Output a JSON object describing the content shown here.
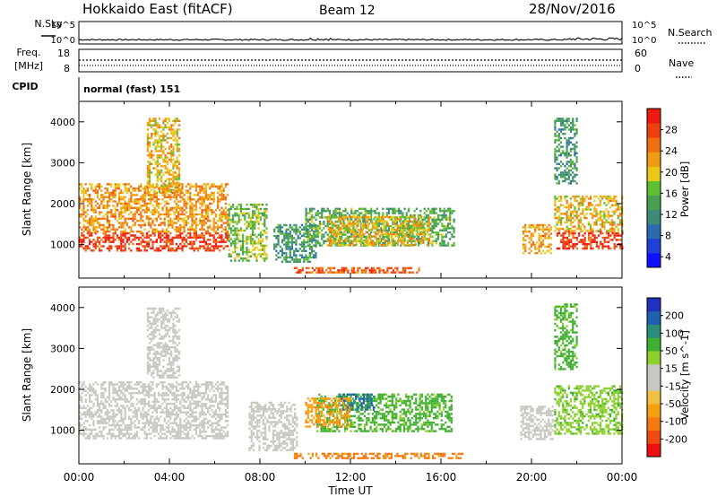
{
  "header": {
    "station": "Hokkaido East (fitACF)",
    "beam": "Beam 12",
    "date": "28/Nov/2016"
  },
  "side_labels": {
    "nsky": "N.Sky",
    "nsearch": "N.Search",
    "freq_top": "Freq.",
    "freq_unit": "[MHz]",
    "nave": "Nave",
    "cpid": "CPID"
  },
  "noise_axis": {
    "top_tick": "10^5",
    "bottom_tick": "10^0",
    "right_top_tick": "10^5",
    "right_bottom_tick": "10^0"
  },
  "freq_axis": {
    "left_ticks": [
      "18",
      "8"
    ],
    "right_ticks": [
      "60",
      "0"
    ]
  },
  "cpid_text": "normal (fast) 151",
  "x_axis": {
    "label": "Time UT",
    "ticks": [
      "00:00",
      "04:00",
      "08:00",
      "12:00",
      "16:00",
      "20:00",
      "00:00"
    ],
    "range_hours": [
      0,
      24
    ]
  },
  "y_axis": {
    "label": "Slant Range [km]",
    "ticks": [
      "1000",
      "2000",
      "3000",
      "4000"
    ],
    "range_km": [
      180,
      4500
    ]
  },
  "colors": {
    "power": [
      "#1010ff",
      "#1c40d8",
      "#2a6ab0",
      "#3d8a78",
      "#46a050",
      "#5cbf30",
      "#e8c818",
      "#f29a10",
      "#f07010",
      "#f04010",
      "#ee1a10"
    ],
    "velocity": [
      "#ee1010",
      "#f04a10",
      "#f47a10",
      "#f6a010",
      "#f0c040",
      "#c8c8c0",
      "#c8c8c0",
      "#8cd02c",
      "#40b030",
      "#2a8c7a",
      "#2060b0",
      "#2030c0"
    ]
  },
  "chart_data": [
    {
      "type": "heatmap",
      "title": "",
      "colorbar_label": "Power [dB]",
      "colorbar_ticks": [
        "4",
        "8",
        "12",
        "16",
        "20",
        "24",
        "28"
      ],
      "xlabel": "",
      "ylabel": "Slant Range [km]",
      "xlim": [
        0,
        24
      ],
      "ylim": [
        180,
        4500
      ],
      "regions": [
        {
          "x": [
            0.0,
            6.6
          ],
          "y": [
            850,
            1300
          ],
          "power_db": 28
        },
        {
          "x": [
            0.0,
            6.6
          ],
          "y": [
            1300,
            2500
          ],
          "power_db": 22
        },
        {
          "x": [
            3.0,
            4.4
          ],
          "y": [
            2300,
            4100
          ],
          "power_db": 20
        },
        {
          "x": [
            6.6,
            8.3
          ],
          "y": [
            600,
            2000
          ],
          "power_db": 16
        },
        {
          "x": [
            8.6,
            10.5
          ],
          "y": [
            600,
            1500
          ],
          "power_db": 12
        },
        {
          "x": [
            10.0,
            16.6
          ],
          "y": [
            1000,
            1900
          ],
          "power_db": 14
        },
        {
          "x": [
            11.0,
            15.5
          ],
          "y": [
            1000,
            1700
          ],
          "power_db": 20
        },
        {
          "x": [
            9.5,
            15.0
          ],
          "y": [
            300,
            450
          ],
          "power_db": 26
        },
        {
          "x": [
            19.6,
            20.9
          ],
          "y": [
            800,
            1500
          ],
          "power_db": 22
        },
        {
          "x": [
            21.1,
            24.0
          ],
          "y": [
            900,
            1350
          ],
          "power_db": 28
        },
        {
          "x": [
            21.0,
            24.0
          ],
          "y": [
            1350,
            2200
          ],
          "power_db": 20
        },
        {
          "x": [
            21.0,
            22.0
          ],
          "y": [
            2500,
            4100
          ],
          "power_db": 12
        }
      ]
    },
    {
      "type": "heatmap",
      "title": "",
      "colorbar_label": "Velocity [m s^-1]",
      "colorbar_ticks": [
        "-200",
        "-100",
        "-50",
        "-15",
        "15",
        "50",
        "100",
        "200"
      ],
      "xlabel": "Time UT",
      "ylabel": "Slant Range [km]",
      "xlim": [
        0,
        24
      ],
      "ylim": [
        180,
        4500
      ],
      "regions": [
        {
          "x": [
            0.0,
            6.6
          ],
          "y": [
            800,
            2200
          ],
          "velocity_ms": 0
        },
        {
          "x": [
            3.0,
            4.4
          ],
          "y": [
            2300,
            4000
          ],
          "velocity_ms": 0
        },
        {
          "x": [
            7.5,
            9.6
          ],
          "y": [
            500,
            1700
          ],
          "velocity_ms": 0
        },
        {
          "x": [
            10.5,
            16.5
          ],
          "y": [
            1000,
            1900
          ],
          "velocity_ms": 60
        },
        {
          "x": [
            11.5,
            13.0
          ],
          "y": [
            1500,
            1900
          ],
          "velocity_ms": 150
        },
        {
          "x": [
            10.0,
            12.0
          ],
          "y": [
            1100,
            1800
          ],
          "velocity_ms": -40
        },
        {
          "x": [
            9.5,
            17.0
          ],
          "y": [
            300,
            450
          ],
          "velocity_ms": -60
        },
        {
          "x": [
            19.5,
            20.9
          ],
          "y": [
            800,
            1600
          ],
          "velocity_ms": 0
        },
        {
          "x": [
            21.0,
            24.0
          ],
          "y": [
            900,
            2100
          ],
          "velocity_ms": 40
        },
        {
          "x": [
            21.0,
            22.0
          ],
          "y": [
            2500,
            4100
          ],
          "velocity_ms": 60
        }
      ]
    }
  ]
}
